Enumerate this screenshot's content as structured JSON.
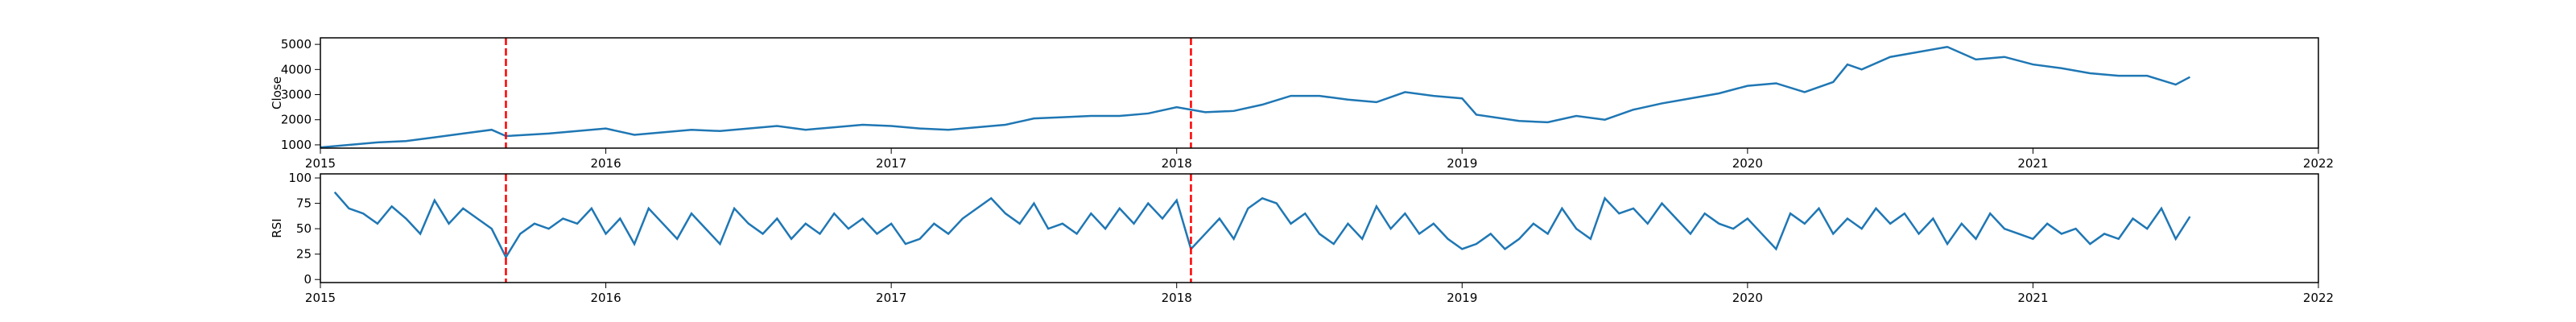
{
  "chart_data": [
    {
      "type": "line",
      "ylabel": "Close",
      "x": [
        2015.0,
        2015.1,
        2015.2,
        2015.3,
        2015.4,
        2015.5,
        2015.6,
        2015.65,
        2015.8,
        2015.9,
        2016.0,
        2016.1,
        2016.2,
        2016.3,
        2016.4,
        2016.5,
        2016.6,
        2016.7,
        2016.8,
        2016.9,
        2017.0,
        2017.1,
        2017.2,
        2017.3,
        2017.4,
        2017.5,
        2017.6,
        2017.7,
        2017.8,
        2017.9,
        2018.0,
        2018.1,
        2018.2,
        2018.3,
        2018.4,
        2018.5,
        2018.6,
        2018.7,
        2018.8,
        2018.9,
        2019.0,
        2019.05,
        2019.2,
        2019.3,
        2019.4,
        2019.5,
        2019.6,
        2019.7,
        2019.8,
        2019.9,
        2020.0,
        2020.1,
        2020.2,
        2020.3,
        2020.35,
        2020.4,
        2020.5,
        2020.6,
        2020.7,
        2020.8,
        2020.9,
        2021.0,
        2021.1,
        2021.2,
        2021.3,
        2021.4,
        2021.5,
        2021.55
      ],
      "series": [
        {
          "color": "#1f77b4",
          "values": [
            900,
            1000,
            1100,
            1150,
            1300,
            1450,
            1600,
            1350,
            1450,
            1550,
            1650,
            1400,
            1500,
            1600,
            1550,
            1650,
            1750,
            1600,
            1700,
            1800,
            1750,
            1650,
            1600,
            1700,
            1800,
            2050,
            2100,
            2150,
            2150,
            2250,
            2500,
            2300,
            2350,
            2600,
            2950,
            2950,
            2800,
            2700,
            3100,
            2950,
            2850,
            2200,
            1950,
            1900,
            2150,
            2000,
            2400,
            2650,
            2850,
            3050,
            3350,
            3450,
            3100,
            3500,
            4200,
            4000,
            4500,
            4700,
            4900,
            4400,
            4500,
            4200,
            4050,
            3850,
            3750,
            3750,
            3400,
            3700
          ]
        }
      ],
      "vlines": [
        2015.65,
        2018.05
      ],
      "vline_color": "#ff0000",
      "xlim": [
        2015,
        2022
      ],
      "xticks": [
        2015,
        2016,
        2017,
        2018,
        2019,
        2020,
        2021,
        2022
      ],
      "ylim": [
        870,
        5260
      ],
      "yticks": [
        1000,
        2000,
        3000,
        4000,
        5000
      ]
    },
    {
      "type": "line",
      "ylabel": "RSI",
      "x": [
        2015.05,
        2015.1,
        2015.15,
        2015.2,
        2015.25,
        2015.3,
        2015.35,
        2015.4,
        2015.45,
        2015.5,
        2015.55,
        2015.6,
        2015.65,
        2015.7,
        2015.75,
        2015.8,
        2015.85,
        2015.9,
        2015.95,
        2016.0,
        2016.05,
        2016.1,
        2016.15,
        2016.2,
        2016.25,
        2016.3,
        2016.35,
        2016.4,
        2016.45,
        2016.5,
        2016.55,
        2016.6,
        2016.65,
        2016.7,
        2016.75,
        2016.8,
        2016.85,
        2016.9,
        2016.95,
        2017.0,
        2017.05,
        2017.1,
        2017.15,
        2017.2,
        2017.25,
        2017.3,
        2017.35,
        2017.4,
        2017.45,
        2017.5,
        2017.55,
        2017.6,
        2017.65,
        2017.7,
        2017.75,
        2017.8,
        2017.85,
        2017.9,
        2017.95,
        2018.0,
        2018.05,
        2018.1,
        2018.15,
        2018.2,
        2018.25,
        2018.3,
        2018.35,
        2018.4,
        2018.45,
        2018.5,
        2018.55,
        2018.6,
        2018.65,
        2018.7,
        2018.75,
        2018.8,
        2018.85,
        2018.9,
        2018.95,
        2019.0,
        2019.05,
        2019.1,
        2019.15,
        2019.2,
        2019.25,
        2019.3,
        2019.35,
        2019.4,
        2019.45,
        2019.5,
        2019.55,
        2019.6,
        2019.65,
        2019.7,
        2019.75,
        2019.8,
        2019.85,
        2019.9,
        2019.95,
        2020.0,
        2020.05,
        2020.1,
        2020.15,
        2020.2,
        2020.25,
        2020.3,
        2020.35,
        2020.4,
        2020.45,
        2020.5,
        2020.55,
        2020.6,
        2020.65,
        2020.7,
        2020.75,
        2020.8,
        2020.85,
        2020.9,
        2020.95,
        2021.0,
        2021.05,
        2021.1,
        2021.15,
        2021.2,
        2021.25,
        2021.3,
        2021.35,
        2021.4,
        2021.45,
        2021.5,
        2021.55
      ],
      "series": [
        {
          "color": "#1f77b4",
          "values": [
            86,
            70,
            65,
            55,
            72,
            60,
            45,
            78,
            55,
            70,
            60,
            50,
            22,
            45,
            55,
            50,
            60,
            55,
            70,
            45,
            60,
            35,
            70,
            55,
            40,
            65,
            50,
            35,
            70,
            55,
            45,
            60,
            40,
            55,
            45,
            65,
            50,
            60,
            45,
            55,
            35,
            40,
            55,
            45,
            60,
            70,
            80,
            65,
            55,
            75,
            50,
            55,
            45,
            65,
            50,
            70,
            55,
            75,
            60,
            78,
            30,
            45,
            60,
            40,
            70,
            80,
            75,
            55,
            65,
            45,
            35,
            55,
            40,
            72,
            50,
            65,
            45,
            55,
            40,
            30,
            35,
            45,
            30,
            40,
            55,
            45,
            70,
            50,
            40,
            80,
            65,
            70,
            55,
            75,
            60,
            45,
            65,
            55,
            50,
            60,
            45,
            30,
            65,
            55,
            70,
            45,
            60,
            50,
            70,
            55,
            65,
            45,
            60,
            35,
            55,
            40,
            65,
            50,
            45,
            40,
            55,
            45,
            50,
            35,
            45,
            40,
            60,
            50,
            70,
            40,
            62
          ]
        }
      ],
      "vlines": [
        2015.65,
        2018.05
      ],
      "vline_color": "#ff0000",
      "xlim": [
        2015,
        2022
      ],
      "xticks": [
        2015,
        2016,
        2017,
        2018,
        2019,
        2020,
        2021,
        2022
      ],
      "ylim": [
        -3,
        104
      ],
      "yticks": [
        0,
        25,
        50,
        75,
        100
      ]
    }
  ]
}
